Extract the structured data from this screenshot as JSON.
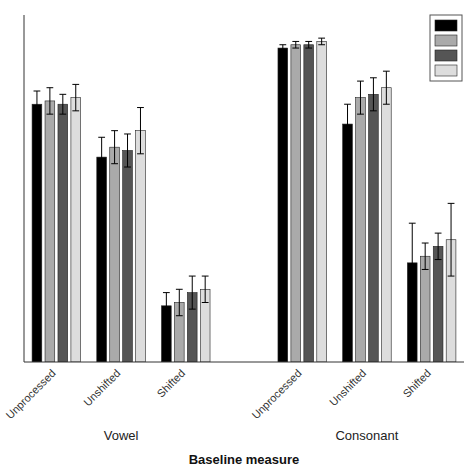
{
  "chart_data": {
    "type": "bar",
    "categories": [
      "Unprocessed",
      "Unshifted",
      "Shifted",
      "Unprocessed",
      "Unshifted",
      "Shifted"
    ],
    "annotations": [
      "Vowel",
      "Consonant"
    ],
    "x_label": "Baseline measure",
    "series": [
      {
        "color": "#000000",
        "values": [
          0.78,
          0.62,
          0.17,
          0.95,
          0.72,
          0.3
        ],
        "errors": [
          0.04,
          0.06,
          0.04,
          0.01,
          0.06,
          0.12
        ]
      },
      {
        "color": "#aaaaaa",
        "values": [
          0.79,
          0.65,
          0.18,
          0.96,
          0.8,
          0.32
        ],
        "errors": [
          0.04,
          0.05,
          0.04,
          0.01,
          0.05,
          0.04
        ]
      },
      {
        "color": "#555555",
        "values": [
          0.78,
          0.64,
          0.21,
          0.96,
          0.81,
          0.35
        ],
        "errors": [
          0.03,
          0.05,
          0.05,
          0.01,
          0.05,
          0.04
        ]
      },
      {
        "color": "#dddddd",
        "values": [
          0.8,
          0.7,
          0.22,
          0.97,
          0.83,
          0.37
        ],
        "errors": [
          0.04,
          0.07,
          0.04,
          0.01,
          0.05,
          0.11
        ]
      }
    ],
    "ylim": [
      0,
      1.05
    ],
    "yticks": [],
    "tick_labels": "x",
    "grid": false,
    "legend": "upper right"
  }
}
